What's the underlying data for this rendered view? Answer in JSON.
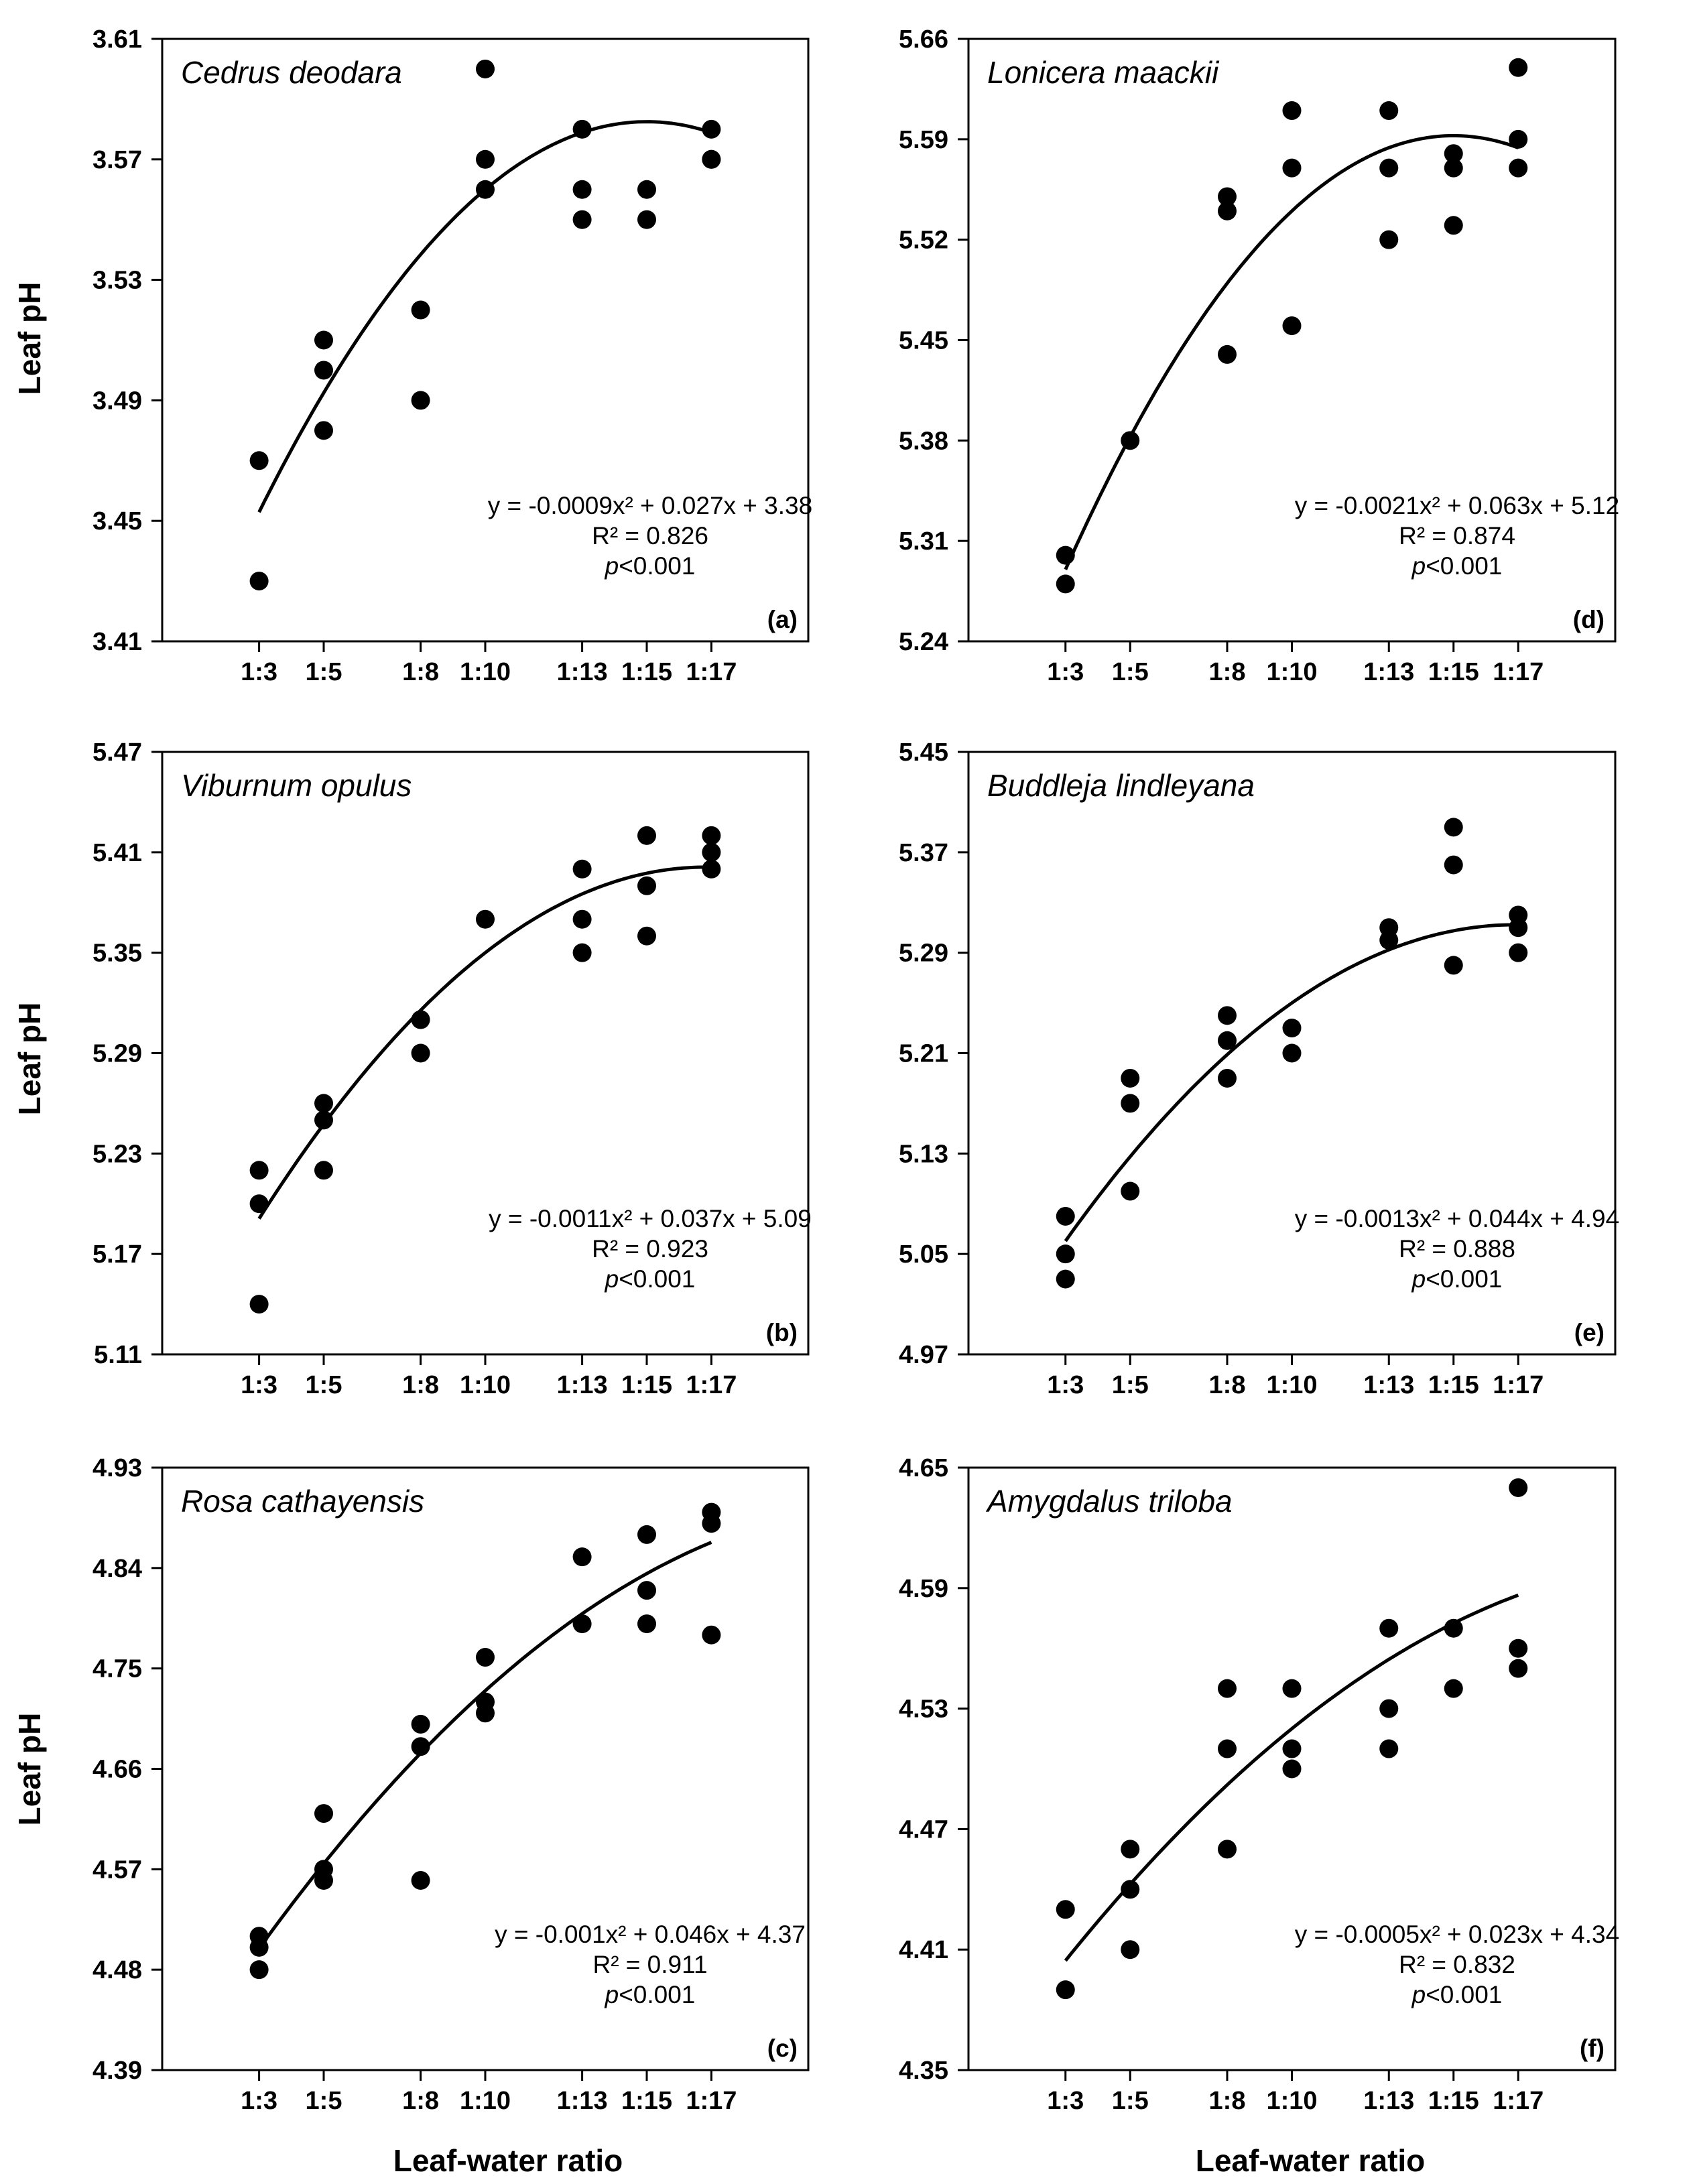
{
  "figure": {
    "xlabel": "Leaf-water ratio",
    "ylabel": "Leaf pH"
  },
  "chart_data": [
    {
      "type": "scatter",
      "panel": "(a)",
      "title": "Cedrus deodara",
      "xlabel": "Leaf-water ratio",
      "ylabel": "Leaf pH",
      "categories": [
        "1:3",
        "1:5",
        "1:8",
        "1:10",
        "1:13",
        "1:15",
        "1:17"
      ],
      "x": [
        3,
        5,
        8,
        10,
        13,
        15,
        17
      ],
      "xlim": [
        0,
        20
      ],
      "ylim": [
        3.41,
        3.61
      ],
      "yticks": [
        "3.41",
        "3.45",
        "3.49",
        "3.53",
        "3.57",
        "3.61"
      ],
      "points": [
        [
          3,
          3.47
        ],
        [
          3,
          3.43
        ],
        [
          5,
          3.51
        ],
        [
          5,
          3.5
        ],
        [
          5,
          3.48
        ],
        [
          8,
          3.52
        ],
        [
          8,
          3.49
        ],
        [
          10,
          3.6
        ],
        [
          10,
          3.57
        ],
        [
          10,
          3.56
        ],
        [
          13,
          3.58
        ],
        [
          13,
          3.56
        ],
        [
          13,
          3.55
        ],
        [
          15,
          3.56
        ],
        [
          15,
          3.55
        ],
        [
          17,
          3.58
        ],
        [
          17,
          3.57
        ],
        [
          17,
          3.57
        ]
      ],
      "fit": {
        "a": -0.0009,
        "b": 0.027,
        "c": 3.38
      },
      "equation": "y = -0.0009x² + 0.027x + 3.38",
      "r2": "R² = 0.826",
      "p_prefix": "p",
      "p_suffix": "<0.001"
    },
    {
      "type": "scatter",
      "panel": "(d)",
      "title": "Lonicera maackii",
      "xlabel": "Leaf-water ratio",
      "ylabel": "Leaf pH",
      "categories": [
        "1:3",
        "1:5",
        "1:8",
        "1:10",
        "1:13",
        "1:15",
        "1:17"
      ],
      "x": [
        3,
        5,
        8,
        10,
        13,
        15,
        17
      ],
      "xlim": [
        0,
        20
      ],
      "ylim": [
        5.24,
        5.66
      ],
      "yticks": [
        "5.24",
        "5.31",
        "5.38",
        "5.45",
        "5.52",
        "5.59",
        "5.66"
      ],
      "points": [
        [
          3,
          5.3
        ],
        [
          3,
          5.28
        ],
        [
          5,
          5.38
        ],
        [
          8,
          5.55
        ],
        [
          8,
          5.54
        ],
        [
          8,
          5.44
        ],
        [
          10,
          5.61
        ],
        [
          10,
          5.57
        ],
        [
          10,
          5.46
        ],
        [
          13,
          5.61
        ],
        [
          13,
          5.57
        ],
        [
          13,
          5.52
        ],
        [
          15,
          5.58
        ],
        [
          15,
          5.57
        ],
        [
          15,
          5.53
        ],
        [
          17,
          5.64
        ],
        [
          17,
          5.59
        ],
        [
          17,
          5.57
        ]
      ],
      "fit": {
        "a": -0.0021,
        "b": 0.063,
        "c": 5.12
      },
      "equation": "y = -0.0021x² + 0.063x + 5.12",
      "r2": "R² = 0.874",
      "p_prefix": "p",
      "p_suffix": "<0.001"
    },
    {
      "type": "scatter",
      "panel": "(b)",
      "title": "Viburnum opulus",
      "xlabel": "Leaf-water ratio",
      "ylabel": "Leaf pH",
      "categories": [
        "1:3",
        "1:5",
        "1:8",
        "1:10",
        "1:13",
        "1:15",
        "1:17"
      ],
      "x": [
        3,
        5,
        8,
        10,
        13,
        15,
        17
      ],
      "xlim": [
        0,
        20
      ],
      "ylim": [
        5.11,
        5.47
      ],
      "yticks": [
        "5.11",
        "5.17",
        "5.23",
        "5.29",
        "5.35",
        "5.41",
        "5.47"
      ],
      "points": [
        [
          3,
          5.22
        ],
        [
          3,
          5.2
        ],
        [
          3,
          5.14
        ],
        [
          5,
          5.26
        ],
        [
          5,
          5.25
        ],
        [
          5,
          5.22
        ],
        [
          8,
          5.31
        ],
        [
          8,
          5.29
        ],
        [
          10,
          5.37
        ],
        [
          13,
          5.4
        ],
        [
          13,
          5.37
        ],
        [
          13,
          5.35
        ],
        [
          15,
          5.42
        ],
        [
          15,
          5.39
        ],
        [
          15,
          5.36
        ],
        [
          17,
          5.42
        ],
        [
          17,
          5.41
        ],
        [
          17,
          5.4
        ]
      ],
      "fit": {
        "a": -0.0011,
        "b": 0.037,
        "c": 5.09
      },
      "equation": "y = -0.0011x² + 0.037x + 5.09",
      "r2": "R² = 0.923",
      "p_prefix": "p",
      "p_suffix": "<0.001"
    },
    {
      "type": "scatter",
      "panel": "(e)",
      "title": "Buddleja lindleyana",
      "xlabel": "Leaf-water ratio",
      "ylabel": "Leaf pH",
      "categories": [
        "1:3",
        "1:5",
        "1:8",
        "1:10",
        "1:13",
        "1:15",
        "1:17"
      ],
      "x": [
        3,
        5,
        8,
        10,
        13,
        15,
        17
      ],
      "xlim": [
        0,
        20
      ],
      "ylim": [
        4.97,
        5.45
      ],
      "yticks": [
        "4.97",
        "5.05",
        "5.13",
        "5.21",
        "5.29",
        "5.37",
        "5.45"
      ],
      "points": [
        [
          3,
          5.08
        ],
        [
          3,
          5.05
        ],
        [
          3,
          5.03
        ],
        [
          5,
          5.19
        ],
        [
          5,
          5.17
        ],
        [
          5,
          5.1
        ],
        [
          8,
          5.24
        ],
        [
          8,
          5.22
        ],
        [
          8,
          5.19
        ],
        [
          10,
          5.23
        ],
        [
          10,
          5.21
        ],
        [
          13,
          5.31
        ],
        [
          13,
          5.3
        ],
        [
          15,
          5.39
        ],
        [
          15,
          5.36
        ],
        [
          15,
          5.28
        ],
        [
          17,
          5.32
        ],
        [
          17,
          5.31
        ],
        [
          17,
          5.29
        ]
      ],
      "fit": {
        "a": -0.0013,
        "b": 0.044,
        "c": 4.94
      },
      "equation": "y = -0.0013x² + 0.044x + 4.94",
      "r2": "R² = 0.888",
      "p_prefix": "p",
      "p_suffix": "<0.001"
    },
    {
      "type": "scatter",
      "panel": "(c)",
      "title": "Rosa cathayensis",
      "xlabel": "Leaf-water ratio",
      "ylabel": "Leaf pH",
      "categories": [
        "1:3",
        "1:5",
        "1:8",
        "1:10",
        "1:13",
        "1:15",
        "1:17"
      ],
      "x": [
        3,
        5,
        8,
        10,
        13,
        15,
        17
      ],
      "xlim": [
        0,
        20
      ],
      "ylim": [
        4.39,
        4.93
      ],
      "yticks": [
        "4.39",
        "4.48",
        "4.57",
        "4.66",
        "4.75",
        "4.84",
        "4.93"
      ],
      "points": [
        [
          3,
          4.51
        ],
        [
          3,
          4.5
        ],
        [
          3,
          4.48
        ],
        [
          5,
          4.62
        ],
        [
          5,
          4.57
        ],
        [
          5,
          4.56
        ],
        [
          8,
          4.7
        ],
        [
          8,
          4.68
        ],
        [
          8,
          4.56
        ],
        [
          10,
          4.76
        ],
        [
          10,
          4.72
        ],
        [
          10,
          4.71
        ],
        [
          13,
          4.85
        ],
        [
          13,
          4.79
        ],
        [
          15,
          4.87
        ],
        [
          15,
          4.82
        ],
        [
          15,
          4.79
        ],
        [
          17,
          4.89
        ],
        [
          17,
          4.88
        ],
        [
          17,
          4.78
        ]
      ],
      "fit": {
        "a": -0.001,
        "b": 0.046,
        "c": 4.37
      },
      "equation": "y = -0.001x² + 0.046x + 4.37",
      "r2": "R² = 0.911",
      "p_prefix": "p",
      "p_suffix": "<0.001"
    },
    {
      "type": "scatter",
      "panel": "(f)",
      "title": "Amygdalus triloba",
      "xlabel": "Leaf-water ratio",
      "ylabel": "Leaf pH",
      "categories": [
        "1:3",
        "1:5",
        "1:8",
        "1:10",
        "1:13",
        "1:15",
        "1:17"
      ],
      "x": [
        3,
        5,
        8,
        10,
        13,
        15,
        17
      ],
      "xlim": [
        0,
        20
      ],
      "ylim": [
        4.35,
        4.65
      ],
      "yticks": [
        "4.35",
        "4.41",
        "4.47",
        "4.53",
        "4.59",
        "4.65"
      ],
      "points": [
        [
          3,
          4.43
        ],
        [
          3,
          4.39
        ],
        [
          5,
          4.46
        ],
        [
          5,
          4.44
        ],
        [
          5,
          4.41
        ],
        [
          8,
          4.54
        ],
        [
          8,
          4.51
        ],
        [
          8,
          4.46
        ],
        [
          10,
          4.54
        ],
        [
          10,
          4.51
        ],
        [
          10,
          4.5
        ],
        [
          13,
          4.57
        ],
        [
          13,
          4.53
        ],
        [
          13,
          4.51
        ],
        [
          15,
          4.57
        ],
        [
          15,
          4.54
        ],
        [
          17,
          4.64
        ],
        [
          17,
          4.56
        ],
        [
          17,
          4.55
        ]
      ],
      "fit": {
        "a": -0.0005,
        "b": 0.023,
        "c": 4.34
      },
      "equation": "y = -0.0005x² + 0.023x + 4.34",
      "r2": "R² = 0.832",
      "p_prefix": "p",
      "p_suffix": "<0.001"
    }
  ]
}
